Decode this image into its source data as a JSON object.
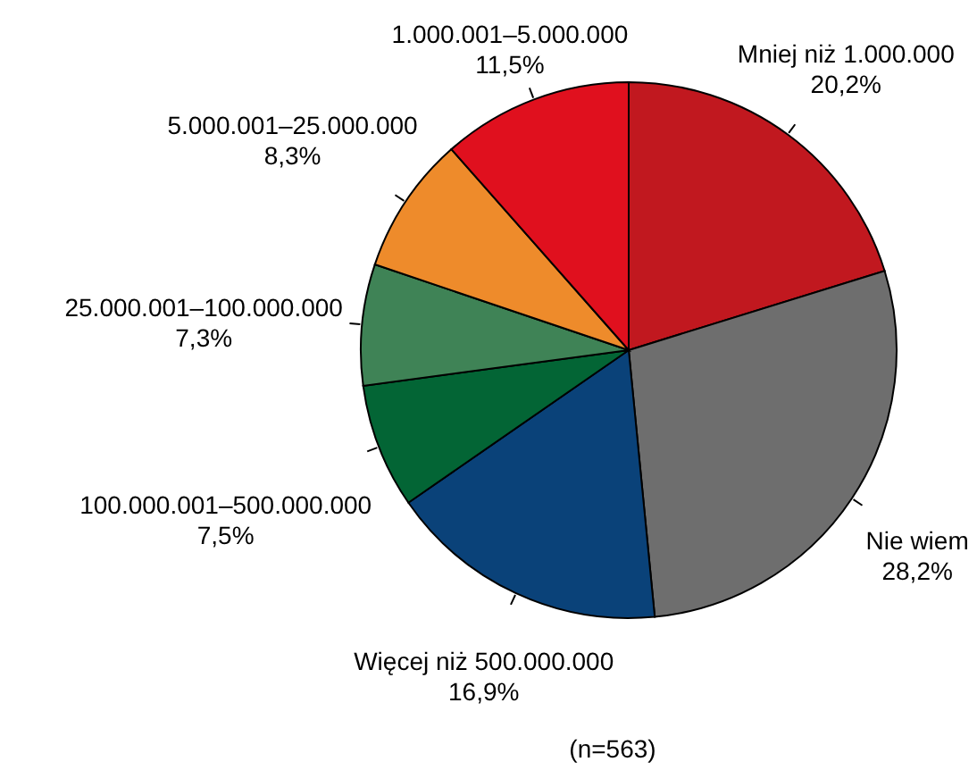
{
  "chart_data": {
    "type": "pie",
    "categories": [
      "Mniej niż 1.000.000",
      "Nie wiem",
      "Więcej niż 500.000.000",
      "100.000.001–500.000.000",
      "25.000.001–100.000.000",
      "5.000.001–25.000.000",
      "1.000.001–5.000.000"
    ],
    "values": [
      20.2,
      28.2,
      16.9,
      7.5,
      7.3,
      8.3,
      11.5
    ],
    "value_labels": [
      "20,2%",
      "28,2%",
      "16,9%",
      "7,5%",
      "7,3%",
      "8,3%",
      "11,5%"
    ],
    "colors": [
      "#c1181f",
      "#6e6e6e",
      "#0a4279",
      "#036535",
      "#3f8356",
      "#ee8b2b",
      "#e0101e"
    ],
    "annotations": [
      "(n=563)"
    ]
  }
}
